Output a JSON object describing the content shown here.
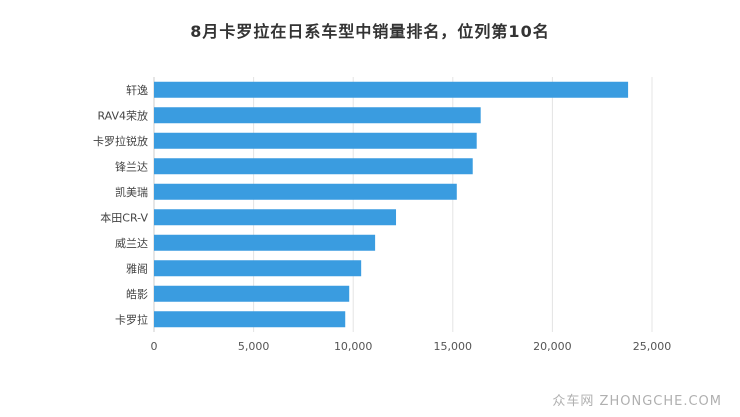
{
  "chart_data": {
    "type": "bar",
    "orientation": "horizontal",
    "title": "8月卡罗拉在日系车型中销量排名，位列第10名",
    "categories": [
      "轩逸",
      "RAV4荣放",
      "卡罗拉锐放",
      "锋兰达",
      "凯美瑞",
      "本田CR-V",
      "威兰达",
      "雅阁",
      "皓影",
      "卡罗拉"
    ],
    "values": [
      23800,
      16400,
      16200,
      16000,
      15200,
      12150,
      11100,
      10400,
      9800,
      9600
    ],
    "xlim": [
      0,
      25000
    ],
    "xticks": [
      0,
      5000,
      10000,
      15000,
      20000,
      25000
    ],
    "xtick_labels": [
      "0",
      "5,000",
      "10,000",
      "15,000",
      "20,000",
      "25,000"
    ],
    "grid": true,
    "bar_color": "#3a9ce0"
  },
  "watermark": "众车网 ZHONGCHE.COM"
}
